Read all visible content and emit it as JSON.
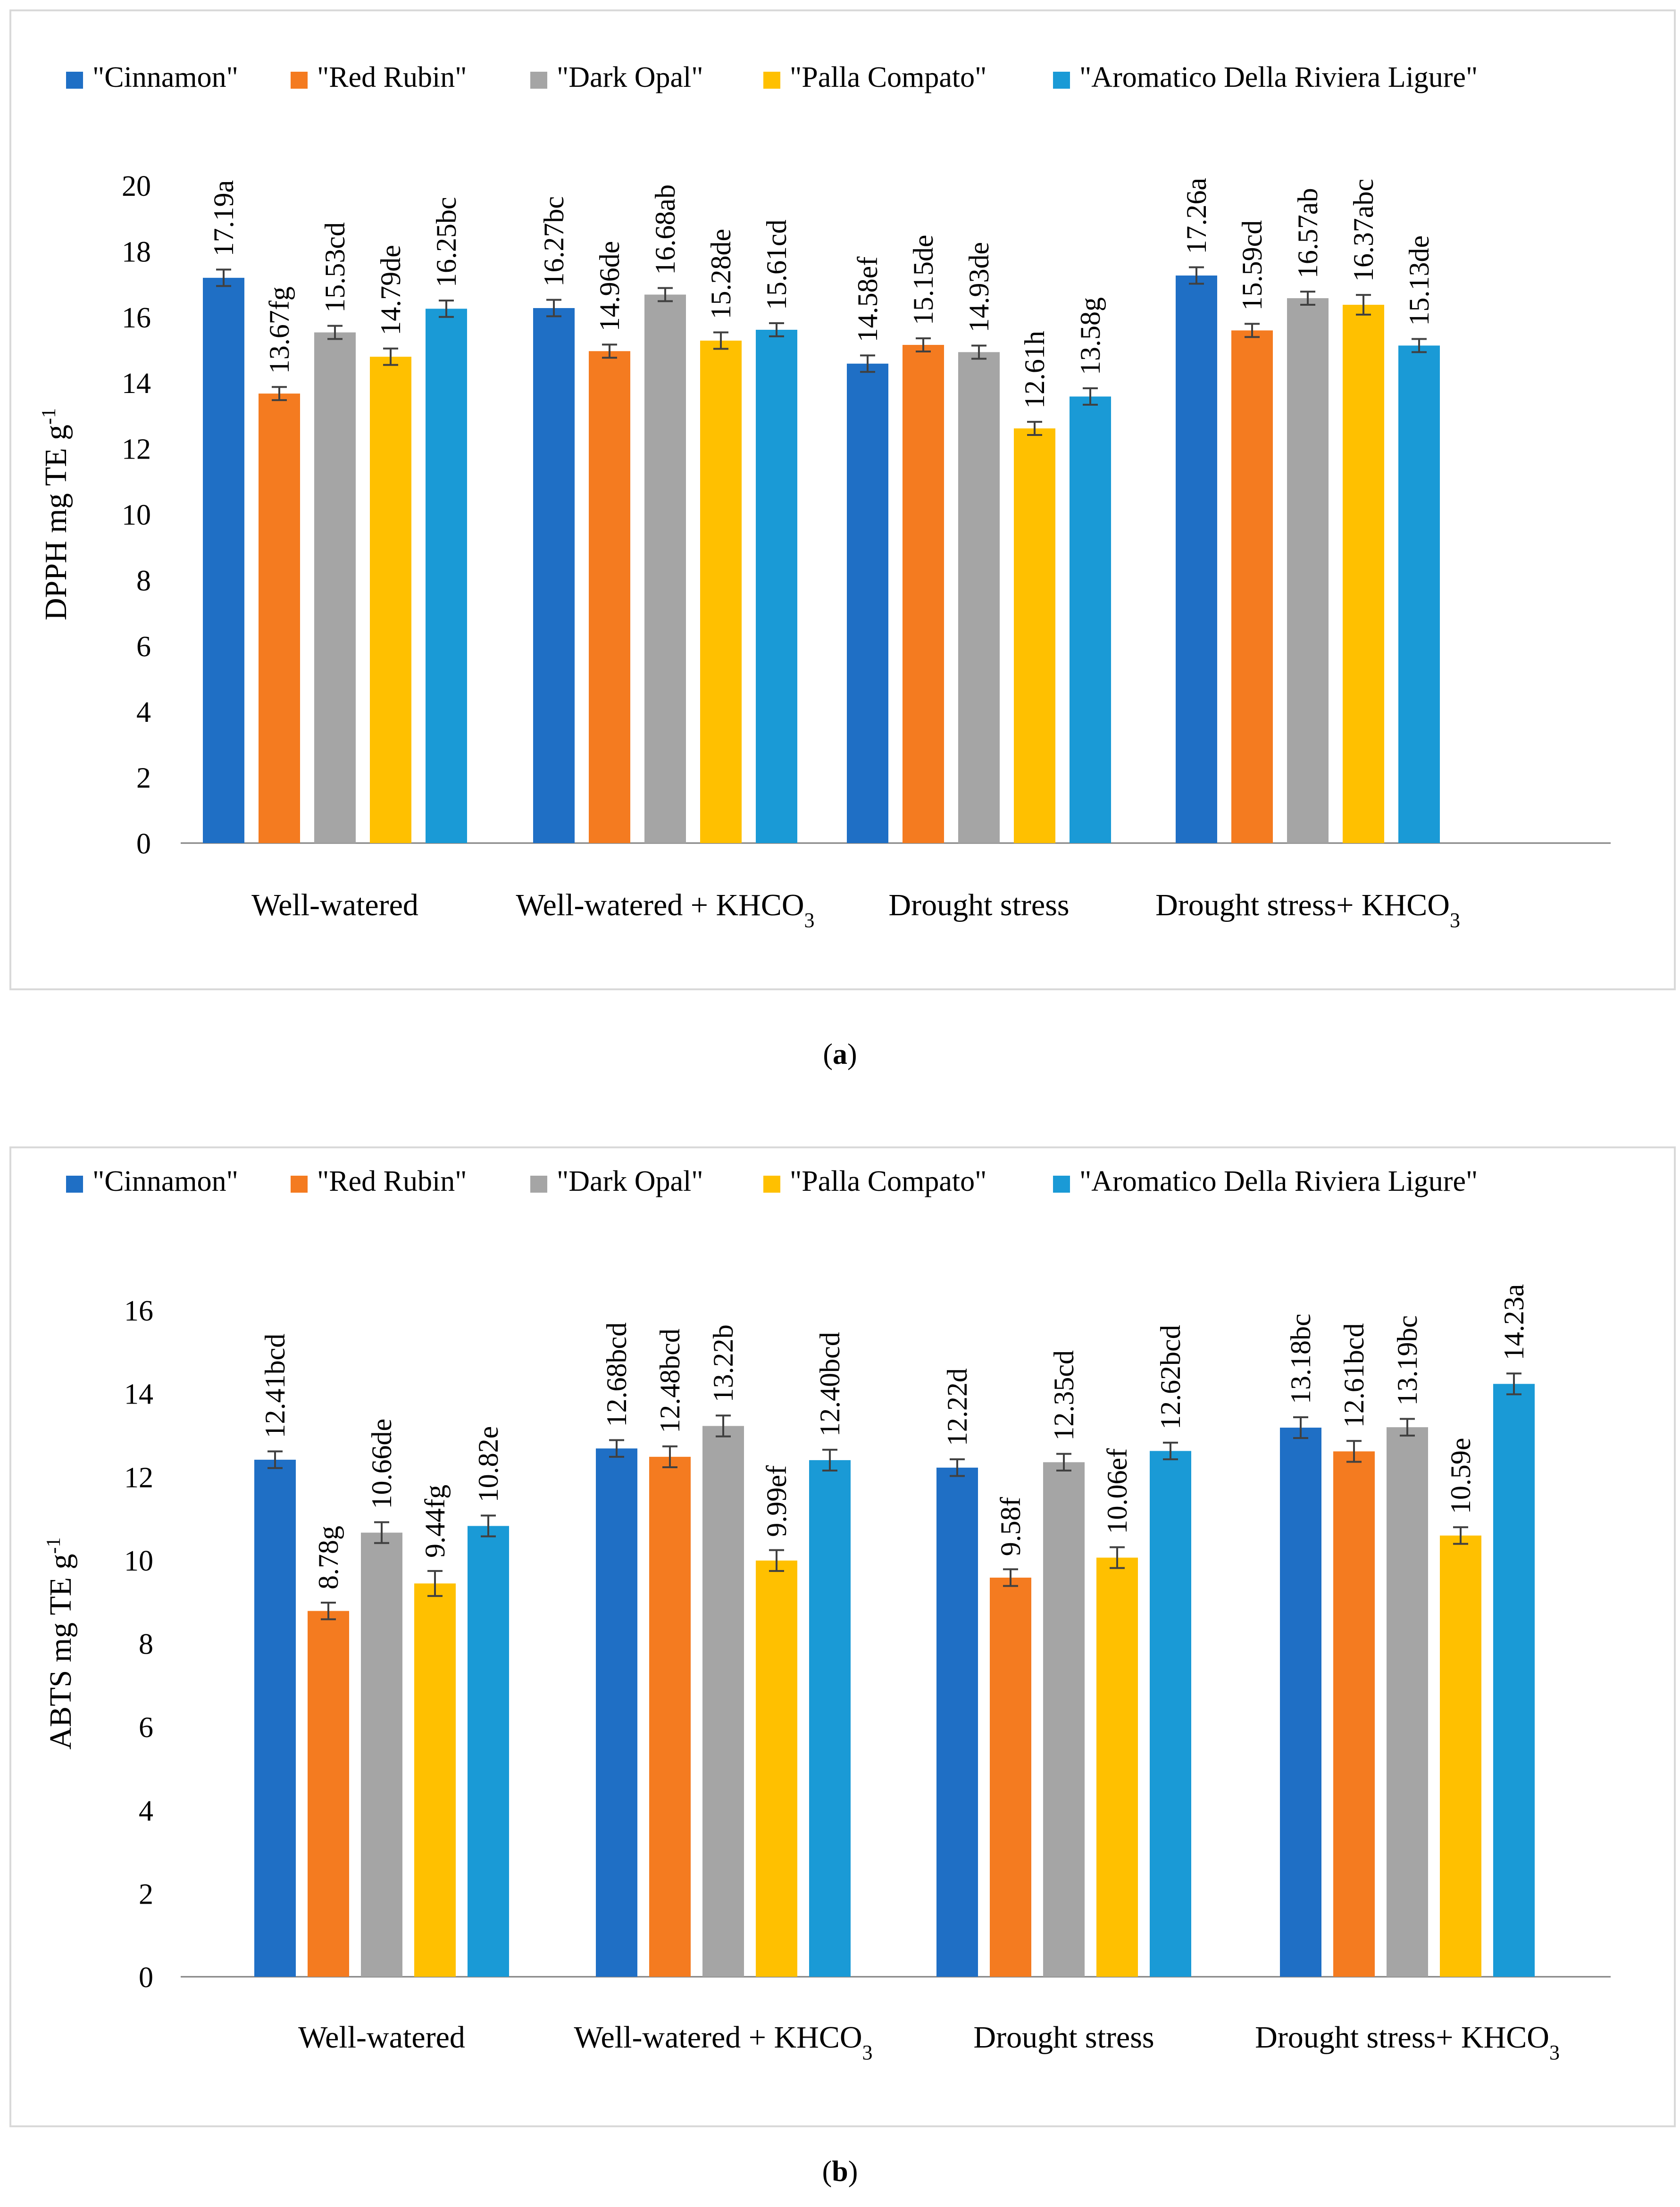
{
  "colors": {
    "Cinnamon": "#1f6fc5",
    "Red Rubin": "#f47b20",
    "Dark Opal": "#a5a5a5",
    "Palla Compato": "#ffc000",
    "Aromatico Della Riviera Ligure": "#1a9ad6",
    "frame": "#d9d9d9",
    "axis": "#808080",
    "errorbar": "#404040"
  },
  "chart_data": [
    {
      "panel": "(a)",
      "panel_letter": "a",
      "type": "bar",
      "title": "",
      "xlabel": "",
      "ylabel": "DPPH mg TE g",
      "ylabel_sup": "-1",
      "ylim": [
        0,
        20
      ],
      "yticks": [
        "0",
        "2",
        "4",
        "6",
        "8",
        "10",
        "12",
        "14",
        "16",
        "18",
        "20"
      ],
      "ytick_step": 2,
      "categories": [
        {
          "main": "Well-watered",
          "sub": "",
          "tail": ""
        },
        {
          "main": "Well-watered + KHCO",
          "sub": "3",
          "tail": ""
        },
        {
          "main": "Drought stress",
          "sub": "",
          "tail": ""
        },
        {
          "main": "Drought stress+ KHCO",
          "sub": "3",
          "tail": ""
        }
      ],
      "legend": [
        "\"Cinnamon\"",
        "\"Red Rubin\"",
        "\"Dark Opal\"",
        "\"Palla Compato\"",
        "\"Aromatico Della Riviera Ligure\""
      ],
      "series": [
        {
          "name": "Cinnamon",
          "values": [
            17.19,
            16.27,
            14.58,
            17.26
          ],
          "errors": [
            0.25,
            0.25,
            0.25,
            0.25
          ],
          "labels": [
            "17.19a",
            "16.27bc",
            "14.58ef",
            "17.26a"
          ]
        },
        {
          "name": "Red Rubin",
          "values": [
            13.67,
            14.96,
            15.15,
            15.59
          ],
          "errors": [
            0.2,
            0.2,
            0.2,
            0.2
          ],
          "labels": [
            "13.67fg",
            "14.96de",
            "15.15de",
            "15.59cd"
          ]
        },
        {
          "name": "Dark Opal",
          "values": [
            15.53,
            16.68,
            14.93,
            16.57
          ],
          "errors": [
            0.2,
            0.2,
            0.2,
            0.2
          ],
          "labels": [
            "15.53cd",
            "16.68ab",
            "14.93de",
            "16.57ab"
          ]
        },
        {
          "name": "Palla Compato",
          "values": [
            14.79,
            15.28,
            12.61,
            16.37
          ],
          "errors": [
            0.25,
            0.25,
            0.2,
            0.3
          ],
          "labels": [
            "14.79de",
            "15.28de",
            "12.61h",
            "16.37abc"
          ]
        },
        {
          "name": "Aromatico Della Riviera Ligure",
          "values": [
            16.25,
            15.61,
            13.58,
            15.13
          ],
          "errors": [
            0.25,
            0.2,
            0.25,
            0.2
          ],
          "labels": [
            "16.25bc",
            "15.61cd",
            "13.58g",
            "15.13de"
          ]
        }
      ]
    },
    {
      "panel": "(b)",
      "panel_letter": "b",
      "type": "bar",
      "title": "",
      "xlabel": "",
      "ylabel": "ABTS mg TE g",
      "ylabel_sup": "-1",
      "ylim": [
        0,
        16
      ],
      "yticks": [
        "0",
        "2",
        "4",
        "6",
        "8",
        "10",
        "12",
        "14",
        "16"
      ],
      "ytick_step": 2,
      "categories": [
        {
          "main": "Well-watered",
          "sub": "",
          "tail": ""
        },
        {
          "main": "Well-watered + KHCO",
          "sub": "3",
          "tail": ""
        },
        {
          "main": "Drought stress",
          "sub": "",
          "tail": ""
        },
        {
          "main": "Drought stress+ KHCO",
          "sub": "3",
          "tail": ""
        }
      ],
      "legend": [
        "\"Cinnamon\"",
        "\"Red Rubin\"",
        "\"Dark Opal\"",
        "\"Palla Compato\"",
        "\"Aromatico Della Riviera Ligure\""
      ],
      "series": [
        {
          "name": "Cinnamon",
          "values": [
            12.41,
            12.68,
            12.22,
            13.18
          ],
          "errors": [
            0.2,
            0.2,
            0.2,
            0.25
          ],
          "labels": [
            "12.41bcd",
            "12.68bcd",
            "12.22d",
            "13.18bc"
          ]
        },
        {
          "name": "Red Rubin",
          "values": [
            8.78,
            12.48,
            9.58,
            12.61
          ],
          "errors": [
            0.2,
            0.25,
            0.2,
            0.25
          ],
          "labels": [
            "8.78g",
            "12.48bcd",
            "9.58f",
            "12.61bcd"
          ]
        },
        {
          "name": "Dark Opal",
          "values": [
            10.66,
            13.22,
            12.35,
            13.19
          ],
          "errors": [
            0.25,
            0.25,
            0.2,
            0.2
          ],
          "labels": [
            "10.66de",
            "13.22b",
            "12.35cd",
            "13.19bc"
          ]
        },
        {
          "name": "Palla Compato",
          "values": [
            9.44,
            9.99,
            10.06,
            10.59
          ],
          "errors": [
            0.3,
            0.25,
            0.25,
            0.2
          ],
          "labels": [
            "9.44fg",
            "9.99ef",
            "10.06ef",
            "10.59e"
          ]
        },
        {
          "name": "Aromatico Della Riviera Ligure",
          "values": [
            10.82,
            12.4,
            12.62,
            14.23
          ],
          "errors": [
            0.25,
            0.25,
            0.2,
            0.25
          ],
          "labels": [
            "10.82e",
            "12.40bcd",
            "12.62bcd",
            "14.23a"
          ]
        }
      ]
    }
  ]
}
